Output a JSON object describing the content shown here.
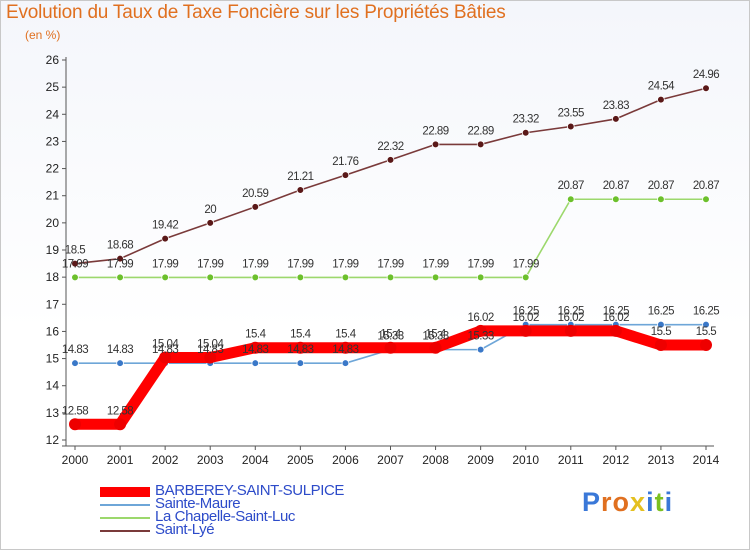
{
  "title": "Evolution du Taux de Taxe Foncière sur les Propriétés Bâties",
  "subtitle": "(en %)",
  "logo": {
    "text": "Proxiti",
    "colors": [
      "#3a78d8",
      "#e07020",
      "#e07020",
      "#e4c020",
      "#3a78d8",
      "#7cc020",
      "#3a78d8"
    ]
  },
  "chart_data": {
    "type": "line",
    "x": [
      "2000",
      "2001",
      "2002",
      "2003",
      "2004",
      "2005",
      "2006",
      "2007",
      "2008",
      "2009",
      "2010",
      "2011",
      "2012",
      "2013",
      "2014"
    ],
    "ylim": [
      12,
      26
    ],
    "yticks": [
      "12",
      "13",
      "14",
      "15",
      "16",
      "17",
      "18",
      "19",
      "20",
      "21",
      "22",
      "23",
      "24",
      "25",
      "26"
    ],
    "grid": false,
    "legend_position": "bottom-left",
    "series": [
      {
        "name": "BARBEREY-SAINT-SULPICE",
        "color": "#ff0000",
        "marker_color": "#ee0000",
        "emphasis": true,
        "values": [
          12.58,
          12.58,
          15.04,
          15.04,
          15.4,
          15.4,
          15.4,
          15.4,
          15.4,
          16.02,
          16.02,
          16.02,
          16.02,
          15.5,
          15.5
        ],
        "labels": [
          "12.58",
          "12.58",
          "15.04",
          "15.04",
          "15.4",
          "15.4",
          "15.4",
          "15.4",
          "15.4",
          "16.02",
          "16.02",
          "16.02",
          "16.02",
          "15.5",
          "15.5"
        ]
      },
      {
        "name": "Sainte-Maure",
        "color": "#6ea6d8",
        "marker_color": "#3a78c8",
        "emphasis": false,
        "values": [
          14.83,
          14.83,
          14.83,
          14.83,
          14.83,
          14.83,
          14.83,
          15.33,
          15.33,
          15.33,
          16.25,
          16.25,
          16.25,
          16.25,
          16.25
        ],
        "labels": [
          "14.83",
          "14.83",
          "14.83",
          "14.83",
          "14.83",
          "14.83",
          "14.83",
          "15.33",
          "15.33",
          "15.33",
          "16.25",
          "16.25",
          "16.25",
          "16.25",
          "16.25"
        ]
      },
      {
        "name": "La Chapelle-Saint-Luc",
        "color": "#9cd86c",
        "marker_color": "#6cc02c",
        "emphasis": false,
        "values": [
          17.99,
          17.99,
          17.99,
          17.99,
          17.99,
          17.99,
          17.99,
          17.99,
          17.99,
          17.99,
          17.99,
          20.87,
          20.87,
          20.87,
          20.87
        ],
        "labels": [
          "17.99",
          "17.99",
          "17.99",
          "17.99",
          "17.99",
          "17.99",
          "17.99",
          "17.99",
          "17.99",
          "17.99",
          "17.99",
          "20.87",
          "20.87",
          "20.87",
          "20.87"
        ]
      },
      {
        "name": "Saint-Lyé",
        "color": "#7a3a3a",
        "marker_color": "#5a1818",
        "emphasis": false,
        "values": [
          18.5,
          18.68,
          19.42,
          20,
          20.59,
          21.21,
          21.76,
          22.32,
          22.89,
          22.89,
          23.32,
          23.55,
          23.83,
          24.54,
          24.96
        ],
        "labels": [
          "18.5",
          "18.68",
          "19.42",
          "20",
          "20.59",
          "21.21",
          "21.76",
          "22.32",
          "22.89",
          "22.89",
          "23.32",
          "23.55",
          "23.83",
          "24.54",
          "24.96"
        ]
      }
    ]
  }
}
